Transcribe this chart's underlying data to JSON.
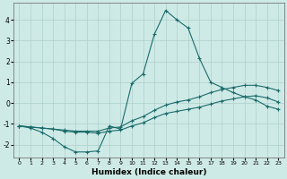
{
  "xlabel": "Humidex (Indice chaleur)",
  "bg_color": "#ceeae6",
  "grid_color": "#aed0cc",
  "line_color": "#1a6b6b",
  "xlim": [
    -0.5,
    23.5
  ],
  "ylim": [
    -2.6,
    4.8
  ],
  "xticks": [
    0,
    1,
    2,
    3,
    4,
    5,
    6,
    7,
    8,
    9,
    10,
    11,
    12,
    13,
    14,
    15,
    16,
    17,
    18,
    19,
    20,
    21,
    22,
    23
  ],
  "yticks": [
    -2,
    -1,
    0,
    1,
    2,
    3,
    4
  ],
  "series1_x": [
    0,
    1,
    2,
    3,
    4,
    5,
    6,
    7,
    8,
    9,
    10,
    11,
    12,
    13,
    14,
    15,
    16,
    17,
    18,
    19,
    20,
    21,
    22,
    23
  ],
  "series1_y": [
    -1.1,
    -1.2,
    -1.4,
    -1.7,
    -2.1,
    -2.35,
    -2.35,
    -2.3,
    -1.1,
    -1.25,
    0.95,
    1.4,
    3.3,
    4.45,
    4.0,
    3.6,
    2.15,
    1.0,
    0.75,
    0.5,
    0.3,
    0.15,
    -0.15,
    -0.3
  ],
  "series2_x": [
    0,
    1,
    2,
    3,
    4,
    5,
    6,
    7,
    8,
    9,
    10,
    11,
    12,
    13,
    14,
    15,
    16,
    17,
    18,
    19,
    20,
    21,
    22,
    23
  ],
  "series2_y": [
    -1.1,
    -1.15,
    -1.2,
    -1.25,
    -1.3,
    -1.35,
    -1.35,
    -1.35,
    -1.2,
    -1.15,
    -0.85,
    -0.65,
    -0.35,
    -0.1,
    0.05,
    0.15,
    0.3,
    0.5,
    0.65,
    0.75,
    0.85,
    0.85,
    0.75,
    0.6
  ],
  "series3_x": [
    0,
    1,
    2,
    3,
    4,
    5,
    6,
    7,
    8,
    9,
    10,
    11,
    12,
    13,
    14,
    15,
    16,
    17,
    18,
    19,
    20,
    21,
    22,
    23
  ],
  "series3_y": [
    -1.1,
    -1.15,
    -1.2,
    -1.25,
    -1.35,
    -1.4,
    -1.4,
    -1.45,
    -1.35,
    -1.3,
    -1.1,
    -0.95,
    -0.7,
    -0.5,
    -0.4,
    -0.3,
    -0.2,
    -0.05,
    0.1,
    0.2,
    0.3,
    0.35,
    0.25,
    0.05
  ]
}
